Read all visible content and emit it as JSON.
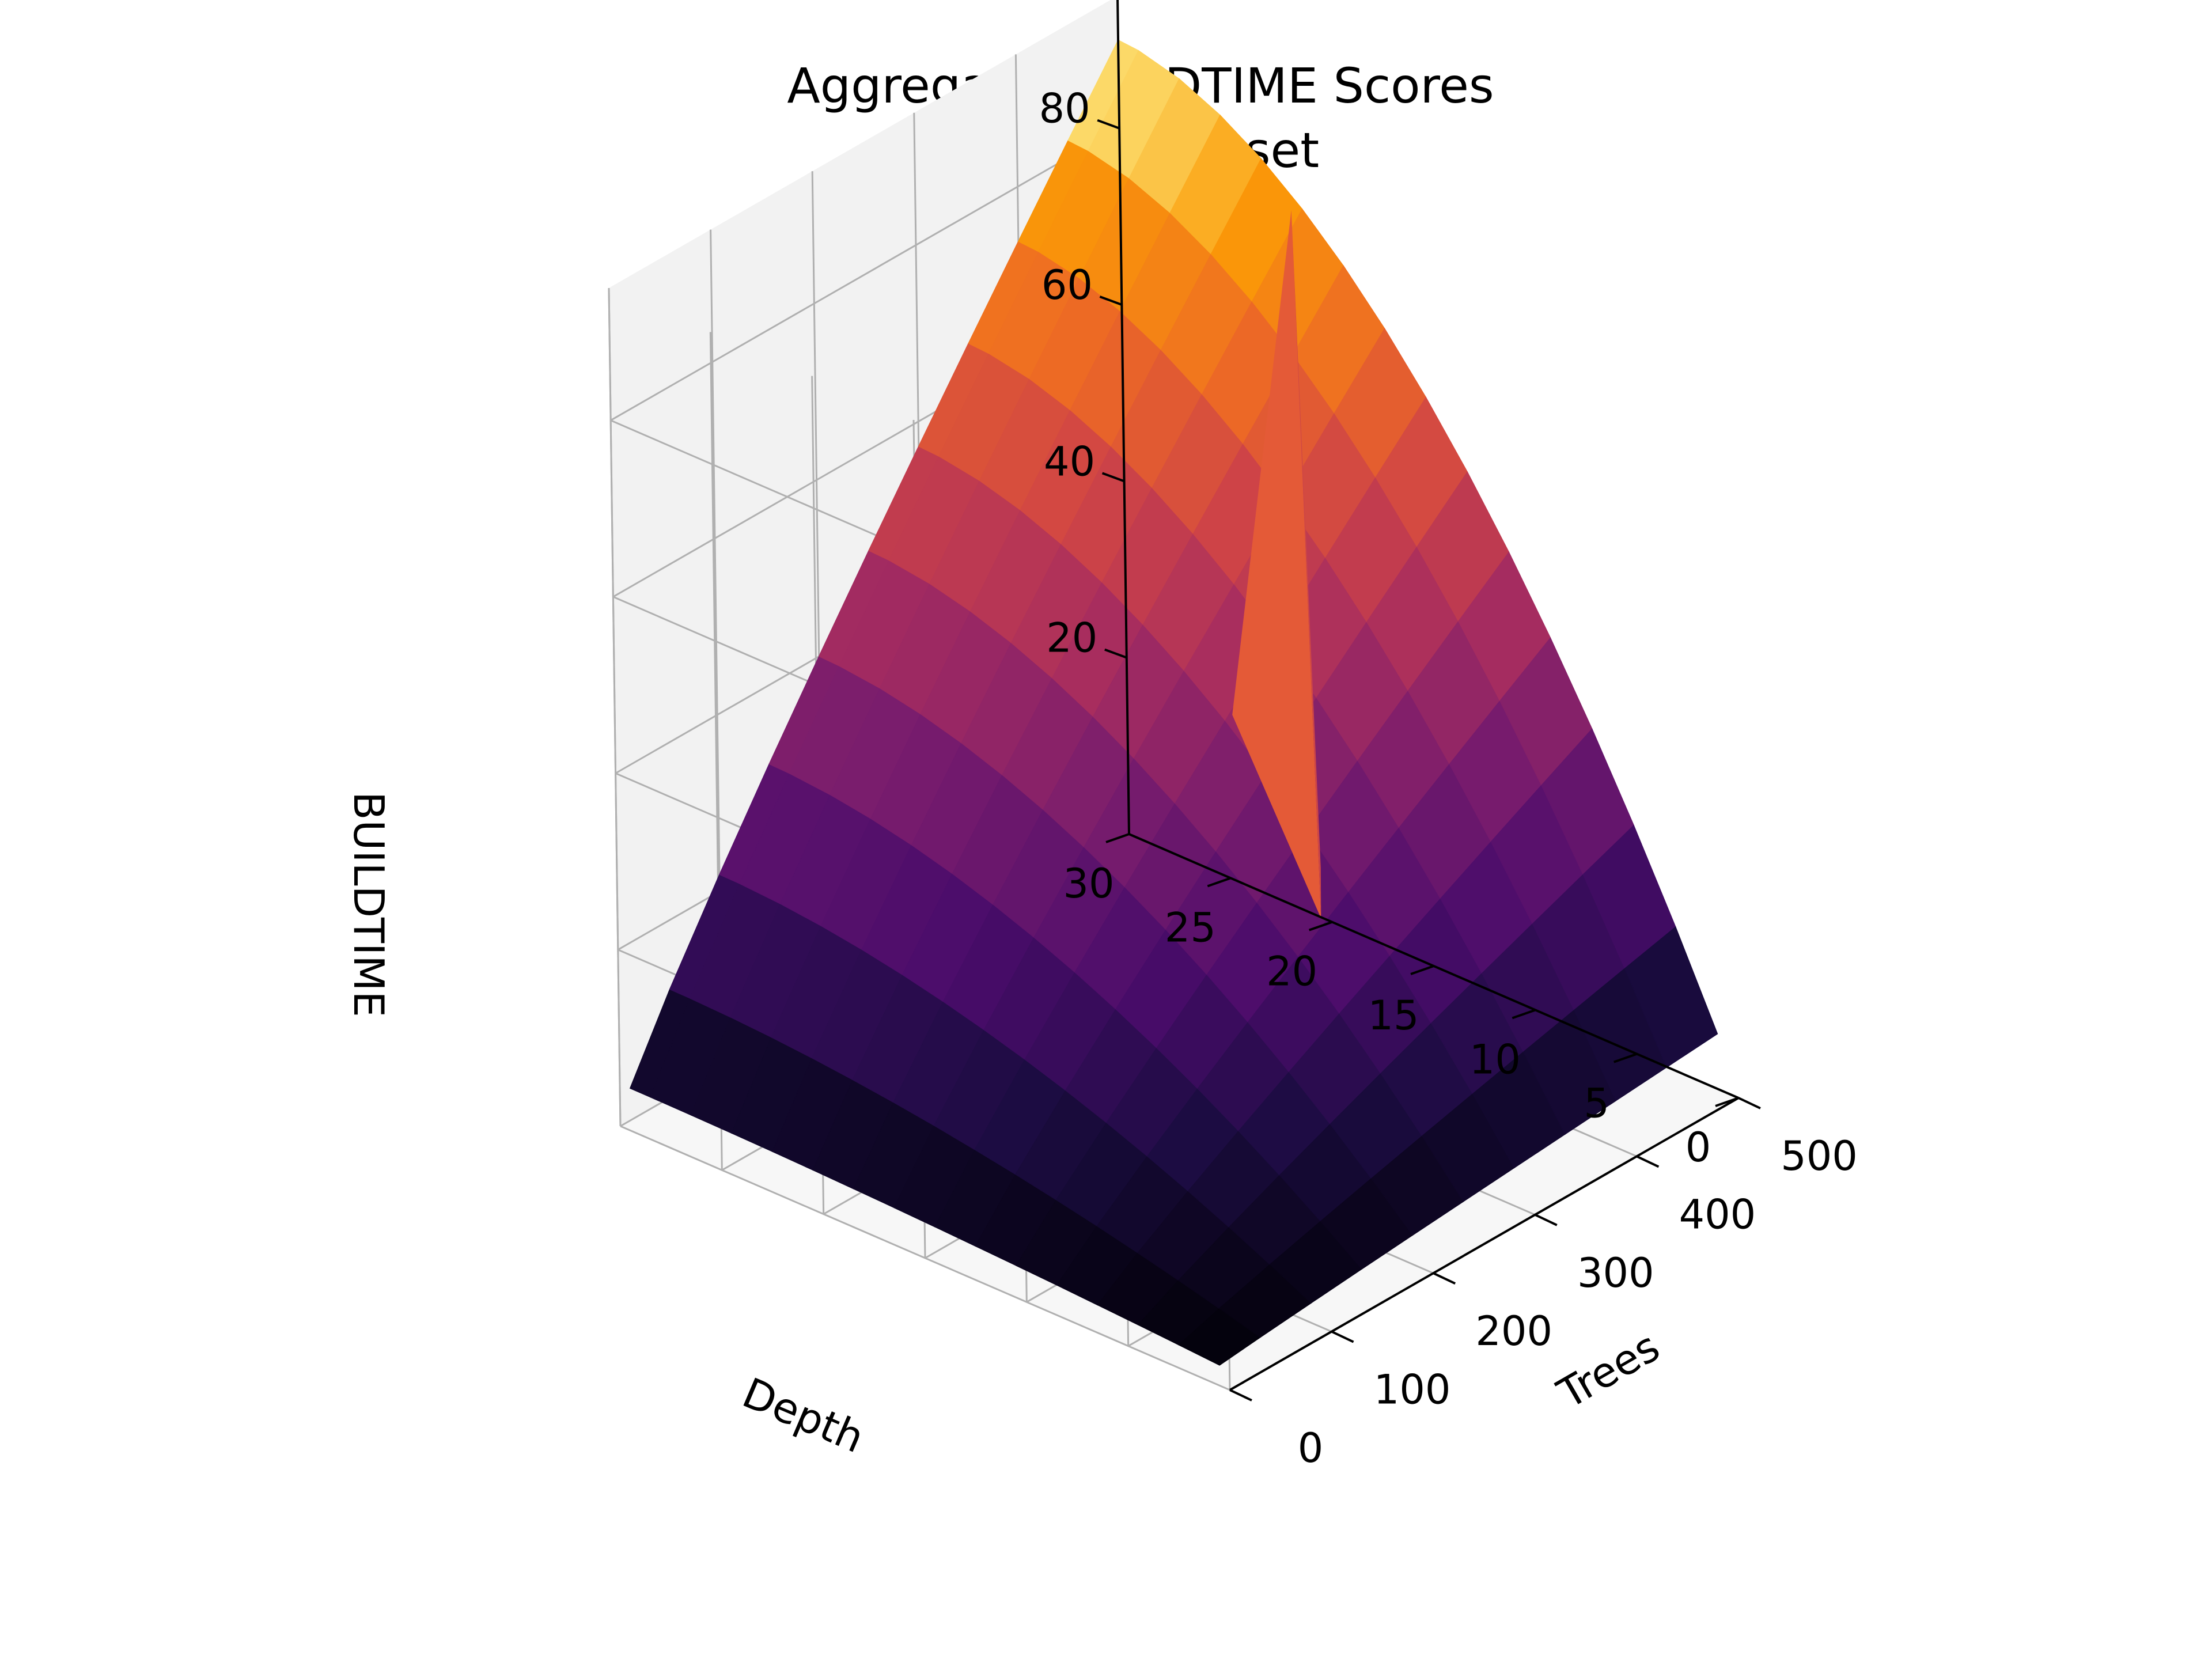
{
  "chart_data": {
    "type": "surface3d",
    "title": "Aggregate BUILDTIME Scores",
    "subtitle": "MNIST Dataset",
    "xlabel": "Depth",
    "ylabel": "Trees",
    "zlabel": "BUILDTIME",
    "xlim": [
      0,
      30
    ],
    "ylim": [
      0,
      500
    ],
    "zlim": [
      0,
      95
    ],
    "x_ticks": [
      0,
      5,
      10,
      15,
      20,
      25,
      30
    ],
    "y_ticks": [
      0,
      100,
      200,
      300,
      400,
      500
    ],
    "z_ticks": [
      20,
      40,
      60,
      80
    ],
    "colormap": "inferno",
    "grid": true,
    "depth_values": [
      1,
      3,
      5,
      7,
      9,
      11,
      13,
      15,
      17,
      19,
      21,
      23,
      25,
      27,
      29,
      30
    ],
    "trees_values": [
      10,
      50,
      100,
      150,
      200,
      250,
      300,
      350,
      400,
      450,
      500
    ],
    "buildtime_max": 90,
    "spike": {
      "depth": 19,
      "trees": 450,
      "value": 85
    }
  }
}
